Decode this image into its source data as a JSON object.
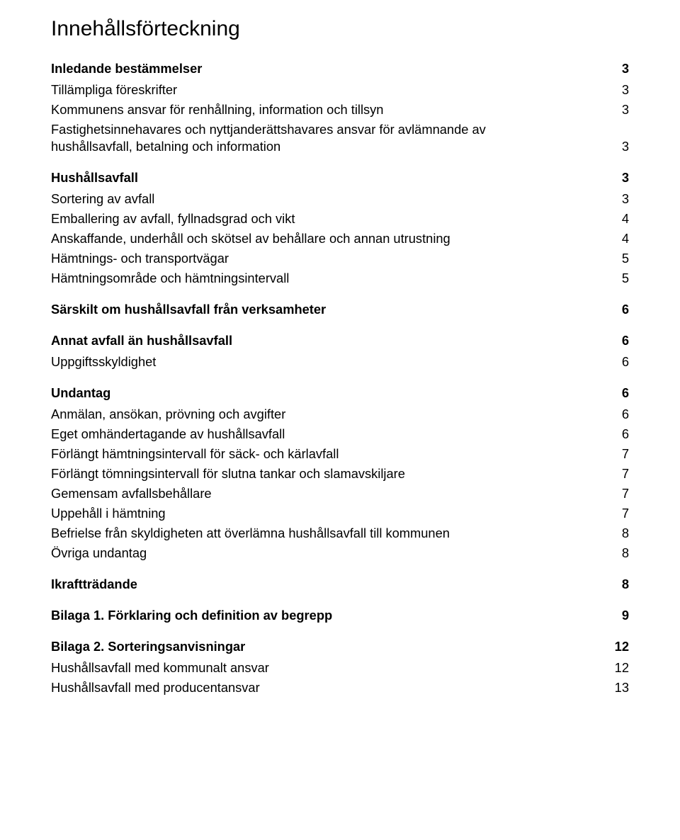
{
  "title": "Innehållsförteckning",
  "toc": [
    {
      "level": 1,
      "label": "Inledande bestämmelser",
      "page": "3"
    },
    {
      "level": 2,
      "label": "Tillämpliga föreskrifter",
      "page": "3"
    },
    {
      "level": 2,
      "label": "Kommunens ansvar för renhållning, information och tillsyn",
      "page": "3"
    },
    {
      "level": 2,
      "label": "Fastighetsinnehavares och nyttjanderättshavares ansvar för avlämnande av hushållsavfall, betalning och information",
      "page": "3",
      "multiline": true
    },
    {
      "level": 1,
      "label": "Hushållsavfall",
      "page": "3"
    },
    {
      "level": 2,
      "label": "Sortering av avfall",
      "page": "3"
    },
    {
      "level": 2,
      "label": "Emballering av avfall, fyllnadsgrad och vikt",
      "page": "4"
    },
    {
      "level": 2,
      "label": "Anskaffande, underhåll och skötsel av behållare och annan utrustning",
      "page": "4"
    },
    {
      "level": 2,
      "label": "Hämtnings- och transportvägar",
      "page": "5"
    },
    {
      "level": 2,
      "label": "Hämtningsområde och hämtningsintervall",
      "page": "5"
    },
    {
      "level": 1,
      "label": "Särskilt om hushållsavfall från verksamheter",
      "page": "6"
    },
    {
      "level": 1,
      "label": "Annat avfall än hushållsavfall",
      "page": "6"
    },
    {
      "level": 2,
      "label": "Uppgiftsskyldighet",
      "page": "6"
    },
    {
      "level": 1,
      "label": "Undantag",
      "page": "6"
    },
    {
      "level": 2,
      "label": "Anmälan, ansökan, prövning och avgifter",
      "page": "6"
    },
    {
      "level": 2,
      "label": "Eget omhändertagande av hushållsavfall",
      "page": "6"
    },
    {
      "level": 2,
      "label": "Förlängt hämtningsintervall för säck- och kärlavfall",
      "page": "7"
    },
    {
      "level": 2,
      "label": "Förlängt tömningsintervall för slutna tankar och slamavskiljare",
      "page": "7"
    },
    {
      "level": 2,
      "label": "Gemensam avfallsbehållare",
      "page": "7"
    },
    {
      "level": 2,
      "label": "Uppehåll i hämtning",
      "page": "7"
    },
    {
      "level": 2,
      "label": "Befrielse från skyldigheten att överlämna hushållsavfall till kommunen",
      "page": "8"
    },
    {
      "level": 2,
      "label": "Övriga undantag",
      "page": "8"
    },
    {
      "level": 1,
      "label": "Ikraftträdande",
      "page": "8"
    },
    {
      "level": 1,
      "label": "Bilaga 1. Förklaring och definition av begrepp",
      "page": "9"
    },
    {
      "level": 1,
      "label": "Bilaga 2. Sorteringsanvisningar",
      "page": "12"
    },
    {
      "level": 2,
      "label": "Hushållsavfall med kommunalt ansvar",
      "page": "12",
      "thin": true
    },
    {
      "level": 2,
      "label": "Hushållsavfall med producentansvar",
      "page": "13",
      "thin": true
    }
  ]
}
